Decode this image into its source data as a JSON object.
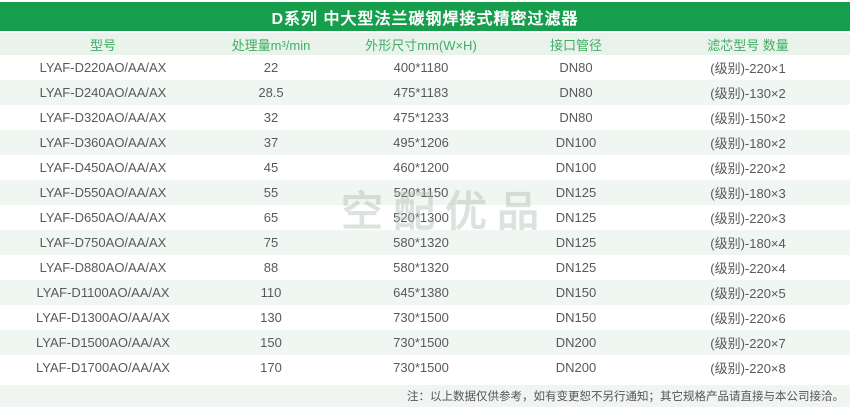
{
  "title": "D系列 中大型法兰碳钢焊接式精密过滤器",
  "watermark": "空配优品",
  "note": "注：以上数据仅供参考，如有变更恕不另行通知；其它规格产品请直接与本公司接洽。",
  "colors": {
    "header_green": "#169e4d",
    "header_row_bg": "#e9f3ec",
    "header_row_text": "#3fae63",
    "stripe_bg": "#f0f6f2",
    "note_bg": "#f0f5f1",
    "cell_text": "#58595b"
  },
  "table": {
    "headers": [
      "型号",
      "处理量m³/min",
      "外形尺寸mm(W×H)",
      "接口管径",
      "滤芯型号 数量"
    ],
    "rows": [
      [
        "LYAF-D220AO/AA/AX",
        "22",
        "400*1180",
        "DN80",
        "(级别)-220×1"
      ],
      [
        "LYAF-D240AO/AA/AX",
        "28.5",
        "475*1183",
        "DN80",
        "(级别)-130×2"
      ],
      [
        "LYAF-D320AO/AA/AX",
        "32",
        "475*1233",
        "DN80",
        "(级别)-150×2"
      ],
      [
        "LYAF-D360AO/AA/AX",
        "37",
        "495*1206",
        "DN100",
        "(级别)-180×2"
      ],
      [
        "LYAF-D450AO/AA/AX",
        "45",
        "460*1200",
        "DN100",
        "(级别)-220×2"
      ],
      [
        "LYAF-D550AO/AA/AX",
        "55",
        "520*1150",
        "DN125",
        "(级别)-180×3"
      ],
      [
        "LYAF-D650AO/AA/AX",
        "65",
        "520*1300",
        "DN125",
        "(级别)-220×3"
      ],
      [
        "LYAF-D750AO/AA/AX",
        "75",
        "580*1320",
        "DN125",
        "(级别)-180×4"
      ],
      [
        "LYAF-D880AO/AA/AX",
        "88",
        "580*1320",
        "DN125",
        "(级别)-220×4"
      ],
      [
        "LYAF-D1100AO/AA/AX",
        "110",
        "645*1380",
        "DN150",
        "(级别)-220×5"
      ],
      [
        "LYAF-D1300AO/AA/AX",
        "130",
        "730*1500",
        "DN150",
        "(级别)-220×6"
      ],
      [
        "LYAF-D1500AO/AA/AX",
        "150",
        "730*1500",
        "DN200",
        "(级别)-220×7"
      ],
      [
        "LYAF-D1700AO/AA/AX",
        "170",
        "730*1500",
        "DN200",
        "(级别)-220×8"
      ]
    ]
  }
}
